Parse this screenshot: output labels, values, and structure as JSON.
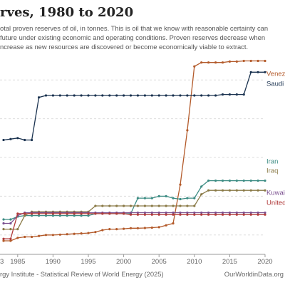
{
  "title": "rves, 1980 to 2020",
  "subtitle_lines": [
    "otal proven reserves of oil, in tonnes. This is oil that we know with reasonable certainty can",
    "future under existing economic and operating conditions. Proven reserves decrease when",
    "ncrease as new resources are discovered or become economically viable to extract."
  ],
  "footer": {
    "source": "rgy Institute - Statistical Review of World Energy (2025)",
    "brand": "OurWorldinData.org"
  },
  "chart_data": {
    "type": "line",
    "title": "",
    "xlabel": "",
    "ylabel": "",
    "xlim": [
      1982.5,
      2020
    ],
    "ylim": [
      0,
      100
    ],
    "gridlines_y": [
      10,
      30,
      50,
      70,
      90
    ],
    "x_ticks": [
      1985,
      1990,
      1995,
      2000,
      2005,
      2010,
      2015,
      2020
    ],
    "x_tick_labels": [
      "1985",
      "1990",
      "1995",
      "2000",
      "2005",
      "2010",
      "2015",
      "2020"
    ],
    "x_partial_label": "3",
    "years": [
      1983,
      1984,
      1985,
      1986,
      1987,
      1988,
      1989,
      1990,
      1991,
      1992,
      1993,
      1994,
      1995,
      1996,
      1997,
      1998,
      1999,
      2000,
      2001,
      2002,
      2003,
      2004,
      2005,
      2006,
      2007,
      2008,
      2009,
      2010,
      2011,
      2012,
      2013,
      2014,
      2015,
      2016,
      2017,
      2018,
      2019,
      2020
    ],
    "series": [
      {
        "name": "Venezuela",
        "label_text": "Venezu",
        "color": "#b35a2a",
        "values": [
          7,
          7,
          8.5,
          9,
          9,
          9.5,
          10,
          10,
          10.2,
          10.4,
          10.6,
          10.8,
          11,
          11.5,
          12.5,
          13,
          13,
          13.2,
          13.5,
          13.5,
          13.6,
          13.8,
          14,
          15,
          16,
          36,
          64,
          97,
          99,
          99,
          99,
          99,
          99.5,
          99.5,
          99.8,
          99.8,
          99.8,
          99.8
        ]
      },
      {
        "name": "Saudi Arabia",
        "label_text": "Saudi A",
        "color": "#1b3350",
        "values": [
          59,
          59.5,
          60,
          59,
          59,
          81,
          82,
          82,
          82,
          82,
          82,
          82,
          82,
          82,
          82,
          82,
          82,
          82,
          82,
          82,
          82,
          82,
          82,
          82,
          82,
          82,
          82,
          82,
          82,
          82,
          82,
          82.5,
          82.5,
          82.5,
          82.5,
          94,
          94,
          94
        ]
      },
      {
        "name": "Iran",
        "label_text": "Iran",
        "color": "#3c8c83",
        "values": [
          18,
          18,
          19.5,
          20,
          20,
          20,
          20,
          20,
          20,
          20,
          20,
          20,
          20,
          21,
          21,
          21,
          21,
          21,
          21,
          29,
          29,
          29,
          30,
          30,
          29,
          28.5,
          29,
          29,
          35,
          38,
          38,
          38,
          38,
          38,
          38,
          38,
          38,
          38
        ]
      },
      {
        "name": "Iraq",
        "label_text": "Iraq",
        "color": "#8a7a47",
        "values": [
          13,
          13,
          13,
          20,
          22,
          22,
          22,
          22,
          22,
          22,
          22,
          22,
          22,
          25,
          25,
          25,
          25,
          25,
          25,
          25,
          25,
          25,
          25,
          25,
          25,
          25,
          25,
          25,
          31,
          33,
          33,
          33,
          33,
          33,
          33,
          33,
          33,
          33
        ]
      },
      {
        "name": "Kuwait",
        "label_text": "Kuwait",
        "color": "#7a4f8f",
        "values": [
          16,
          16,
          20,
          21.5,
          21.5,
          21.5,
          21.5,
          21.5,
          21.5,
          21.5,
          21.5,
          21.5,
          21.5,
          21.5,
          21.5,
          21.5,
          21.5,
          21.5,
          21.5,
          21.5,
          21.5,
          21.5,
          21.5,
          21.5,
          21.5,
          21.5,
          21.5,
          21.5,
          21.5,
          21.5,
          21.5,
          21.5,
          21.5,
          21.5,
          21.5,
          21.5,
          21.5,
          21.5
        ]
      },
      {
        "name": "United Arab Emirates",
        "label_text": "United",
        "color": "#b03a3a",
        "values": [
          8,
          8,
          21,
          21,
          21,
          21,
          21,
          21,
          21,
          21,
          21,
          21,
          21,
          21,
          21,
          21,
          21,
          21,
          20.5,
          20.5,
          20.5,
          20.5,
          20.5,
          20.5,
          20.5,
          20.5,
          20.5,
          20.5,
          20.5,
          20.5,
          20.5,
          20.5,
          20.5,
          20.5,
          20.5,
          20.5,
          20.5,
          20.5
        ]
      }
    ],
    "legend": "inline-right",
    "grid": true
  }
}
